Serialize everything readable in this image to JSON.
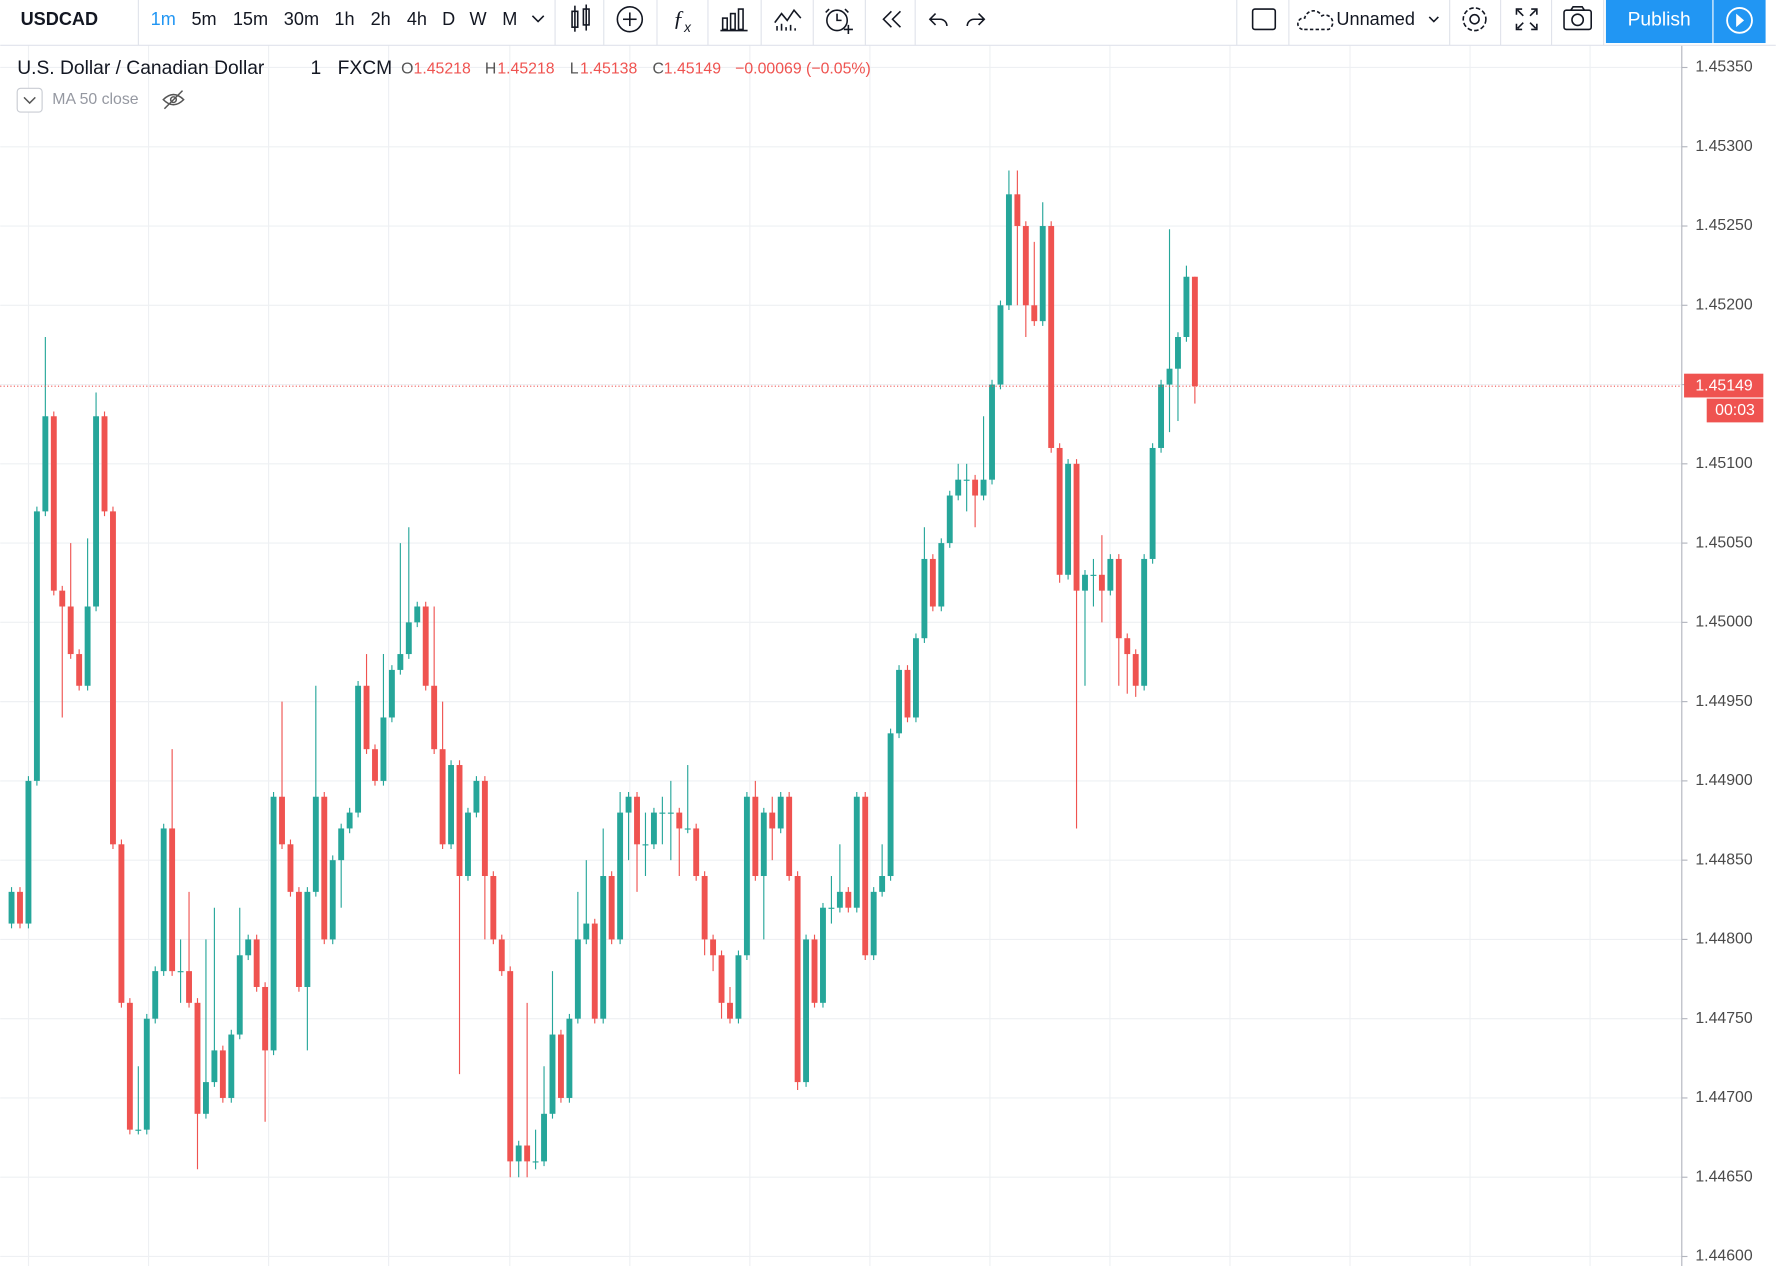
{
  "toolbar": {
    "symbol": "USDCAD",
    "intervals": [
      "1m",
      "5m",
      "15m",
      "30m",
      "1h",
      "2h",
      "4h",
      "D",
      "W",
      "M"
    ],
    "active_interval_index": 0,
    "layout_name": "Unnamed",
    "publish": "Publish"
  },
  "legend": {
    "name": "U.S. Dollar / Canadian Dollar",
    "interval": "1",
    "source": "FXCM",
    "o_label": "O",
    "open": "1.45218",
    "h_label": "H",
    "high": "1.45218",
    "l_label": "L",
    "low": "1.45138",
    "c_label": "C",
    "close": "1.45149",
    "change": "−0.00069 (−0.05%)"
  },
  "indicator": "MA 50 close",
  "chart_data": {
    "type": "candlestick",
    "open": [
      1.4481,
      1.4483,
      1.4481,
      1.449,
      1.4507,
      1.4513,
      1.4502,
      1.4501,
      1.4498,
      1.4496,
      1.4501,
      1.4513,
      1.4507,
      1.4486,
      1.4476,
      1.4468,
      1.4468,
      1.4475,
      1.4478,
      1.4487,
      1.4478,
      1.4478,
      1.4476,
      1.4469,
      1.4471,
      1.4473,
      1.447,
      1.4474,
      1.4479,
      1.448,
      1.4477,
      1.4473,
      1.4489,
      1.4486,
      1.4483,
      1.4477,
      1.4483,
      1.4489,
      1.448,
      1.4485,
      1.4487,
      1.4488,
      1.4496,
      1.4492,
      1.449,
      1.4494,
      1.4497,
      1.4498,
      1.45,
      1.4501,
      1.4496,
      1.4492,
      1.4486,
      1.4491,
      1.4484,
      1.4488,
      1.449,
      1.4484,
      1.448,
      1.4478,
      1.4466,
      1.4467,
      1.4466,
      1.4466,
      1.4469,
      1.4474,
      1.447,
      1.4475,
      1.448,
      1.4481,
      1.4475,
      1.4484,
      1.448,
      1.4488,
      1.4489,
      1.4486,
      1.4486,
      1.4488,
      1.4488,
      1.4488,
      1.4487,
      1.4487,
      1.4484,
      1.448,
      1.4479,
      1.4476,
      1.4475,
      1.4479,
      1.4489,
      1.4484,
      1.4488,
      1.4487,
      1.4489,
      1.4484,
      1.4471,
      1.448,
      1.4476,
      1.4482,
      1.4482,
      1.4483,
      1.4482,
      1.4489,
      1.4479,
      1.4483,
      1.4484,
      1.4493,
      1.4497,
      1.4494,
      1.4499,
      1.4504,
      1.4501,
      1.4505,
      1.4508,
      1.4509,
      1.4509,
      1.4508,
      1.4509,
      1.4515,
      1.452,
      1.4527,
      1.4525,
      1.452,
      1.4519,
      1.4525,
      1.4511,
      1.4503,
      1.451,
      1.4502,
      1.4503,
      1.4503,
      1.4502,
      1.4504,
      1.4499,
      1.4498,
      1.4496,
      1.4504,
      1.4511,
      1.4515,
      1.4516,
      1.4518,
      1.45218
    ],
    "high": [
      1.44833,
      1.44833,
      1.44903,
      1.45073,
      1.4518,
      1.45133,
      1.45023,
      1.4505,
      1.44983,
      1.45053,
      1.45145,
      1.45133,
      1.45073,
      1.44863,
      1.44763,
      1.4472,
      1.44753,
      1.44783,
      1.44873,
      1.4492,
      1.448,
      1.4483,
      1.44763,
      1.448,
      1.4482,
      1.44733,
      1.44743,
      1.4482,
      1.44803,
      1.44803,
      1.44773,
      1.44893,
      1.4495,
      1.44863,
      1.44833,
      1.44833,
      1.4496,
      1.44893,
      1.44853,
      1.44873,
      1.44883,
      1.44963,
      1.4498,
      1.44923,
      1.4498,
      1.44973,
      1.4505,
      1.4506,
      1.45013,
      1.45013,
      1.4501,
      1.4495,
      1.44913,
      1.44913,
      1.44883,
      1.44903,
      1.44903,
      1.44843,
      1.44803,
      1.44783,
      1.44673,
      1.4476,
      1.4468,
      1.4472,
      1.4478,
      1.44743,
      1.44753,
      1.4483,
      1.4485,
      1.44813,
      1.4487,
      1.44843,
      1.44893,
      1.44893,
      1.44893,
      1.4488,
      1.44883,
      1.4489,
      1.449,
      1.44883,
      1.4491,
      1.44873,
      1.44843,
      1.44803,
      1.44793,
      1.4477,
      1.44793,
      1.44893,
      1.449,
      1.44883,
      1.4489,
      1.44893,
      1.44893,
      1.44843,
      1.44803,
      1.44803,
      1.44823,
      1.4484,
      1.4486,
      1.44833,
      1.44893,
      1.44893,
      1.44833,
      1.4486,
      1.44933,
      1.44973,
      1.44973,
      1.44993,
      1.4506,
      1.45043,
      1.45053,
      1.45083,
      1.451,
      1.451,
      1.45093,
      1.4513,
      1.45153,
      1.45203,
      1.45285,
      1.45285,
      1.45253,
      1.4524,
      1.45265,
      1.45253,
      1.45113,
      1.45103,
      1.45103,
      1.45033,
      1.4504,
      1.45055,
      1.45043,
      1.45043,
      1.44993,
      1.44983,
      1.45043,
      1.45113,
      1.45153,
      1.45248,
      1.45183,
      1.45225,
      1.45218
    ],
    "low": [
      1.44807,
      1.44807,
      1.44807,
      1.44897,
      1.45067,
      1.45017,
      1.4494,
      1.44977,
      1.44957,
      1.44957,
      1.45007,
      1.45067,
      1.44857,
      1.44757,
      1.44677,
      1.44677,
      1.44677,
      1.44747,
      1.44777,
      1.44777,
      1.4476,
      1.44757,
      1.44655,
      1.44687,
      1.44707,
      1.44697,
      1.44697,
      1.44737,
      1.44787,
      1.44767,
      1.44685,
      1.44727,
      1.44857,
      1.44827,
      1.44767,
      1.4473,
      1.44827,
      1.44797,
      1.44797,
      1.4482,
      1.44867,
      1.44877,
      1.44917,
      1.44897,
      1.44897,
      1.44937,
      1.44967,
      1.44977,
      1.44997,
      1.44957,
      1.44917,
      1.44857,
      1.44857,
      1.44715,
      1.44837,
      1.44877,
      1.448,
      1.44797,
      1.44777,
      1.4465,
      1.4465,
      1.4465,
      1.44655,
      1.44657,
      1.44687,
      1.44697,
      1.44697,
      1.44747,
      1.44797,
      1.44747,
      1.44747,
      1.44797,
      1.44797,
      1.4485,
      1.4483,
      1.4484,
      1.44857,
      1.4486,
      1.4485,
      1.4484,
      1.44867,
      1.44837,
      1.4479,
      1.4478,
      1.4475,
      1.44747,
      1.44747,
      1.44787,
      1.44837,
      1.448,
      1.4485,
      1.44867,
      1.44837,
      1.44705,
      1.44707,
      1.44757,
      1.44757,
      1.4481,
      1.44817,
      1.44817,
      1.44817,
      1.44787,
      1.44787,
      1.44827,
      1.44837,
      1.44927,
      1.44937,
      1.44937,
      1.44987,
      1.45007,
      1.45007,
      1.45047,
      1.45077,
      1.4507,
      1.4506,
      1.45077,
      1.45087,
      1.45147,
      1.45197,
      1.452,
      1.4518,
      1.45187,
      1.45187,
      1.45107,
      1.45025,
      1.45027,
      1.4487,
      1.4496,
      1.4501,
      1.45,
      1.45017,
      1.4496,
      1.44955,
      1.44953,
      1.44957,
      1.45037,
      1.45107,
      1.4512,
      1.45127,
      1.45177,
      1.45138
    ],
    "close": [
      1.4483,
      1.4481,
      1.449,
      1.4507,
      1.4513,
      1.4502,
      1.4501,
      1.4498,
      1.4496,
      1.4501,
      1.4513,
      1.4507,
      1.4486,
      1.4476,
      1.4468,
      1.4468,
      1.4475,
      1.4478,
      1.4487,
      1.4478,
      1.4478,
      1.4476,
      1.4469,
      1.4471,
      1.4473,
      1.447,
      1.4474,
      1.4479,
      1.448,
      1.4477,
      1.4473,
      1.4489,
      1.4486,
      1.4483,
      1.4477,
      1.4483,
      1.4489,
      1.448,
      1.4485,
      1.4487,
      1.4488,
      1.4496,
      1.4492,
      1.449,
      1.4494,
      1.4497,
      1.4498,
      1.45,
      1.4501,
      1.4496,
      1.4492,
      1.4486,
      1.4491,
      1.4484,
      1.4488,
      1.449,
      1.4484,
      1.448,
      1.4478,
      1.4466,
      1.4467,
      1.4466,
      1.4466,
      1.4469,
      1.4474,
      1.447,
      1.4475,
      1.448,
      1.4481,
      1.4475,
      1.4484,
      1.448,
      1.4488,
      1.4489,
      1.4486,
      1.4486,
      1.4488,
      1.4488,
      1.4488,
      1.4487,
      1.4487,
      1.4484,
      1.448,
      1.4479,
      1.4476,
      1.4475,
      1.4479,
      1.4489,
      1.4484,
      1.4488,
      1.4487,
      1.4489,
      1.4484,
      1.4471,
      1.448,
      1.4476,
      1.4482,
      1.4482,
      1.4483,
      1.4482,
      1.4489,
      1.4479,
      1.4483,
      1.4484,
      1.4493,
      1.4497,
      1.4494,
      1.4499,
      1.4504,
      1.4501,
      1.4505,
      1.4508,
      1.4509,
      1.4509,
      1.4508,
      1.4509,
      1.4515,
      1.452,
      1.4527,
      1.4525,
      1.452,
      1.4519,
      1.4525,
      1.4511,
      1.4503,
      1.451,
      1.4502,
      1.4503,
      1.4503,
      1.4502,
      1.4504,
      1.4499,
      1.4498,
      1.4496,
      1.4504,
      1.4511,
      1.4515,
      1.4516,
      1.4518,
      1.45218,
      1.45149
    ],
    "up_color": "#26a69a",
    "down_color": "#ef5350",
    "ylim": [
      1.44594,
      1.45364
    ],
    "yticks": [
      {
        "value": 1.446,
        "label": "1.44600"
      },
      {
        "value": 1.4465,
        "label": "1.44650"
      },
      {
        "value": 1.447,
        "label": "1.44700"
      },
      {
        "value": 1.4475,
        "label": "1.44750"
      },
      {
        "value": 1.448,
        "label": "1.44800"
      },
      {
        "value": 1.4485,
        "label": "1.44850"
      },
      {
        "value": 1.449,
        "label": "1.44900"
      },
      {
        "value": 1.4495,
        "label": "1.44950"
      },
      {
        "value": 1.45,
        "label": "1.45000"
      },
      {
        "value": 1.4505,
        "label": "1.45050"
      },
      {
        "value": 1.451,
        "label": "1.45100"
      },
      {
        "value": 1.4515,
        "label": "1.45150"
      },
      {
        "value": 1.452,
        "label": "1.45200"
      },
      {
        "value": 1.4525,
        "label": "1.45250"
      },
      {
        "value": 1.453,
        "label": "1.45300"
      },
      {
        "value": 1.4535,
        "label": "1.45350"
      }
    ],
    "grid": true,
    "countdown": "00:03"
  }
}
